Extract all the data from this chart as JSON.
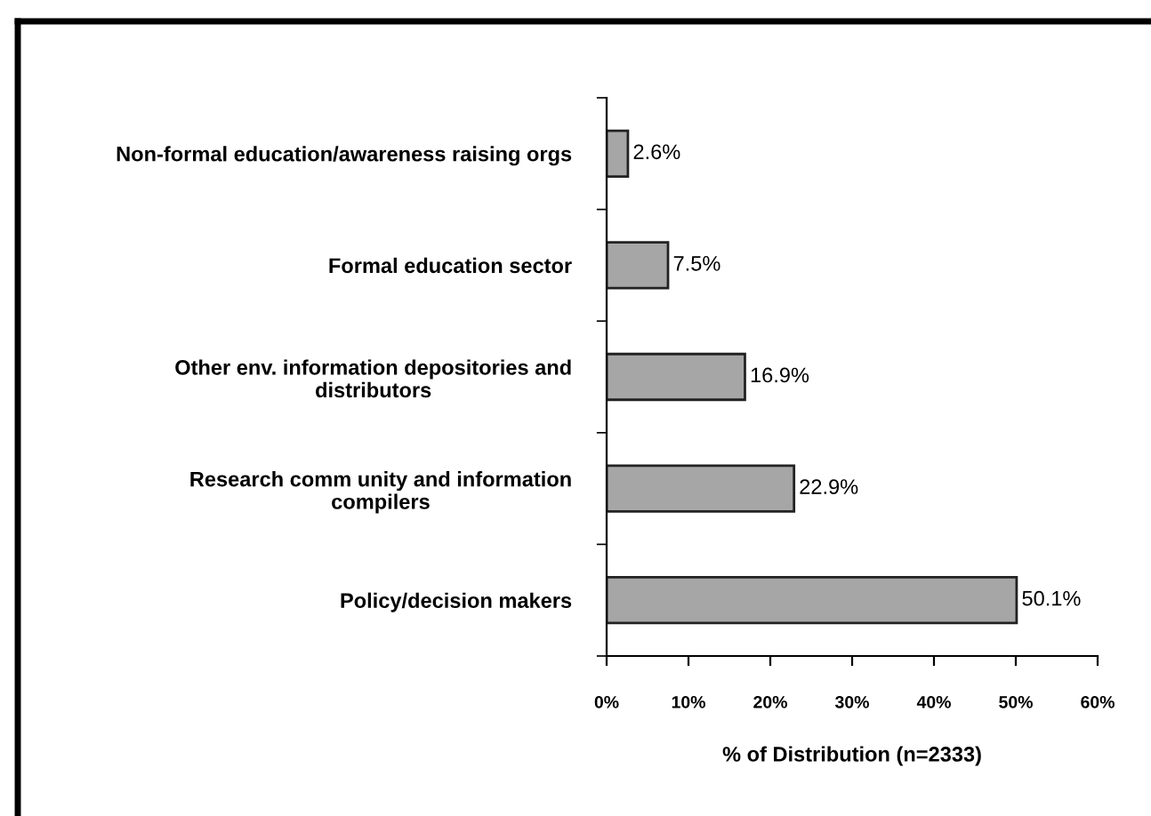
{
  "chart_data": {
    "type": "bar",
    "orientation": "horizontal",
    "categories": [
      "Non-formal education/awareness raising orgs",
      "Formal education sector",
      "Other env. information depositories and\ndistributors",
      "Research comm unity and information\ncompilers",
      "Policy/decision makers"
    ],
    "values": [
      2.6,
      7.5,
      16.9,
      22.9,
      50.1
    ],
    "value_labels": [
      "2.6%",
      "7.5%",
      "16.9%",
      "22.9%",
      "50.1%"
    ],
    "color": "#a6a6a6",
    "xlabel": "% of Distribution (n=2333)",
    "xlim": [
      0,
      60
    ],
    "xticks": [
      {
        "value": 0,
        "label": "0%"
      },
      {
        "value": 10,
        "label": "10%"
      },
      {
        "value": 20,
        "label": "20%"
      },
      {
        "value": 30,
        "label": "30%"
      },
      {
        "value": 40,
        "label": "40%"
      },
      {
        "value": 50,
        "label": "50%"
      },
      {
        "value": 60,
        "label": "60%"
      }
    ]
  }
}
